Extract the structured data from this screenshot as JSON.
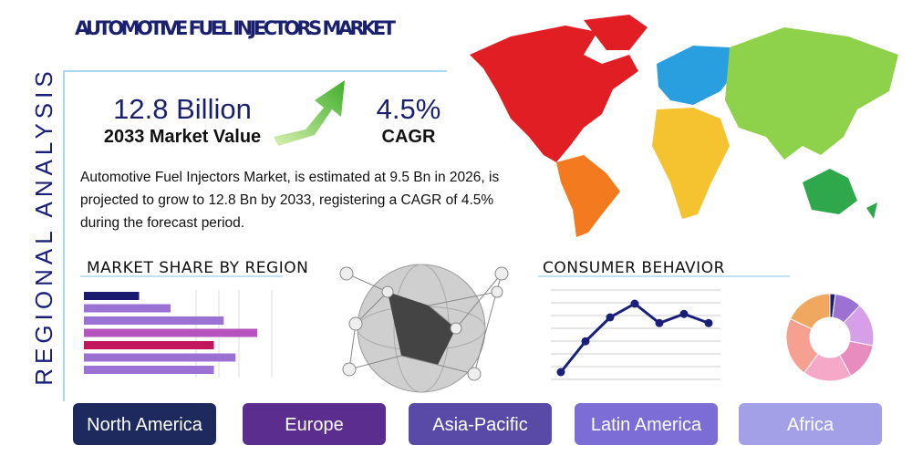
{
  "header": {
    "title": "AUTOMOTIVE FUEL INJECTORS MARKET",
    "side_label": "REGIONAL ANALYSIS"
  },
  "highlights": [
    {
      "value": "12.8 Billion",
      "label": "2033 Market Value"
    },
    {
      "value": "4.5%",
      "label": "CAGR"
    }
  ],
  "description": "Automotive Fuel Injectors Market, is estimated at 9.5 Bn in 2026, is projected to grow to 12.8 Bn by 2033, registering a CAGR of 4.5% during the forecast period.",
  "market_share": {
    "title": "MARKET SHARE BY REGION",
    "type": "bar",
    "xlim": [
      0,
      100
    ],
    "values": [
      28,
      44,
      71,
      88,
      66,
      77,
      66
    ],
    "colors": [
      "#1a1a6e",
      "#9b72d4",
      "#9b72d4",
      "#b553bf",
      "#c2185b",
      "#9b72d4",
      "#9b72d4"
    ]
  },
  "consumer_behavior": {
    "title": "CONSUMER BEHAVIOR",
    "type": "line",
    "ylim": [
      0,
      80
    ],
    "color": "#1a1f7a",
    "values": [
      8,
      35,
      56,
      68,
      51,
      59,
      51
    ]
  },
  "donut": {
    "type": "pie",
    "values": [
      2,
      10,
      16,
      14,
      18,
      22,
      18
    ],
    "colors": [
      "#1a1a6e",
      "#9b72d4",
      "#d6a0e8",
      "#e88cc0",
      "#f5a8c8",
      "#f5a090",
      "#f0a860"
    ]
  },
  "regions": [
    "North America",
    "Europe",
    "Asia-Pacific",
    "Latin America",
    "Africa"
  ],
  "region_colors": [
    "#1e2a5e",
    "#5b2d8e",
    "#5a4aa8",
    "#7b6cd6",
    "#a3a0e8"
  ]
}
